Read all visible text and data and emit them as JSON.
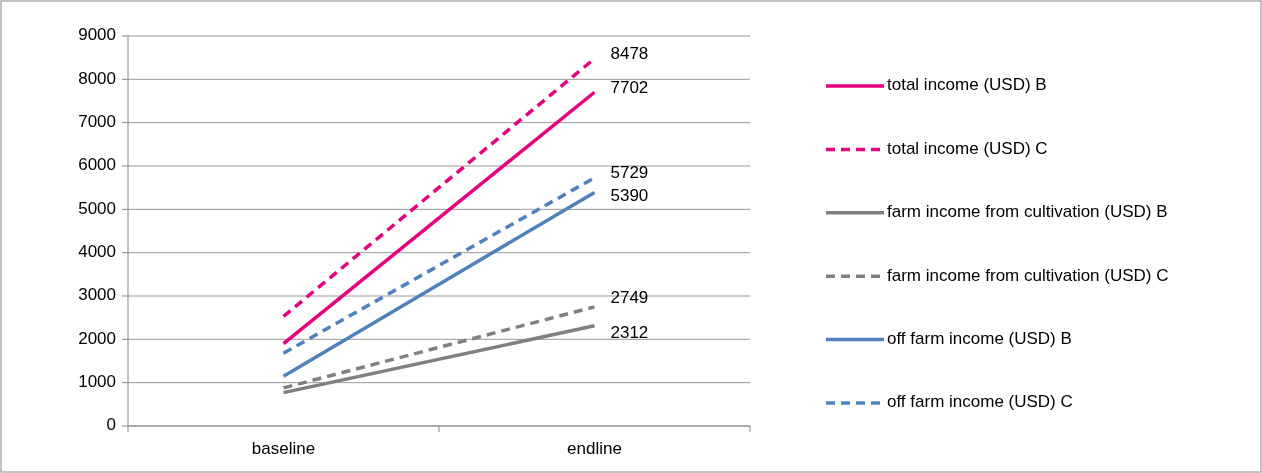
{
  "chart_data": {
    "type": "line",
    "categories": [
      "baseline",
      "endline"
    ],
    "ylim": [
      0,
      9000
    ],
    "yticks": [
      0,
      1000,
      2000,
      3000,
      4000,
      5000,
      6000,
      7000,
      8000,
      9000
    ],
    "grid": "y",
    "legend": "right",
    "series": [
      {
        "name": "total income (USD) B",
        "color": "#e6007e",
        "line_style": "solid",
        "values": [
          1900,
          7702
        ],
        "value_labels": [
          null,
          "7702"
        ]
      },
      {
        "name": "total income (USD) C",
        "color": "#e6007e",
        "line_style": "dashed",
        "values": [
          2530,
          8478
        ],
        "value_labels": [
          null,
          "8478"
        ]
      },
      {
        "name": "farm income from cultivation (USD) B",
        "color": "#808080",
        "line_style": "solid",
        "values": [
          770,
          2312
        ],
        "value_labels": [
          null,
          "2312"
        ]
      },
      {
        "name": "farm income from cultivation (USD) C",
        "color": "#808080",
        "line_style": "dashed",
        "values": [
          880,
          2749
        ],
        "value_labels": [
          null,
          "2749"
        ]
      },
      {
        "name": "off farm income (USD) B",
        "color": "#4f81bd",
        "line_style": "solid",
        "values": [
          1150,
          5390
        ],
        "value_labels": [
          null,
          "5390"
        ]
      },
      {
        "name": "off farm income (USD) C",
        "color": "#4f81bd",
        "line_style": "dashed",
        "values": [
          1680,
          5729
        ],
        "value_labels": [
          null,
          "5729"
        ]
      }
    ]
  }
}
